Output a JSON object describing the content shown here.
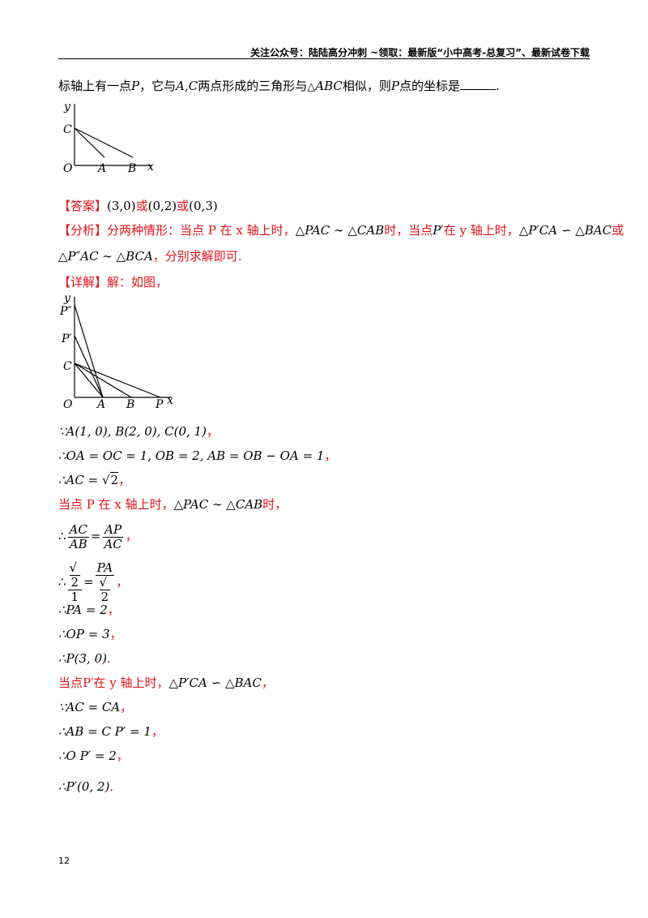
{
  "header": {
    "text": "关注公众号：陆陆高分冲刺 ~领取：最新版“小中高考-总复习”、最新试卷下载"
  },
  "question": {
    "prefix": "标轴上有一点",
    "p": "P",
    "mid1": "，它与",
    "ac": "A",
    "comma": ",",
    "c": "C",
    "mid2": "两点形成的三角形与",
    "tri": "△",
    "abc": "ABC",
    "mid3": "相似，则",
    "p2": "P",
    "mid4": "点的坐标是",
    "end": "."
  },
  "figure1": {
    "labels": {
      "y": "y",
      "c": "C",
      "o": "O",
      "a": "A",
      "b": "B",
      "x": "x"
    }
  },
  "answer": {
    "tag": "【答案】",
    "v1": "(3,0)",
    "or1": "或",
    "v2": "(0,2)",
    "or2": "或",
    "v3": "(0,3)"
  },
  "analysis": {
    "tag": "【分析】",
    "line1": "分两种情形：当点 P 在 x 轴上时，",
    "sim1": "△PAC ∼ △CAB",
    "t1": "时，当点",
    "pp": "P′",
    "t2": "在 y 轴上时，",
    "sim2": "△P′CA ∽ △BAC",
    "t3": "或",
    "sim3": "△P″AC ∼ △BCA",
    "t4": "，分别求解即可."
  },
  "detail": {
    "tag": "【详解】",
    "text": "解：如图，"
  },
  "figure2": {
    "labels": {
      "y": "y",
      "p2": "P″",
      "p1": "P′",
      "c": "C",
      "o": "O",
      "a": "A",
      "b": "B",
      "p": "P",
      "x": "x"
    }
  },
  "steps": {
    "s1": "∵A(1, 0), B(2, 0), C(0, 1)",
    "s1end": "，",
    "s2": "∴OA = OC = 1, OB = 2, AB = OB − OA = 1",
    "s2end": "，",
    "s3a": "∴AC = ",
    "s3root": "2",
    "s3end": "，",
    "s4": "当点 P 在 x 轴上时，",
    "s4sim": "△PAC ∼ △CAB",
    "s4end": "时，",
    "s5pre": "∴",
    "s5n1": "AC",
    "s5d1": "AB",
    "s5eq": "=",
    "s5n2": "AP",
    "s5d2": "AC",
    "s5end": "，",
    "s6pre": "∴",
    "s6n1": "2",
    "s6d1": "1",
    "s6eq": "=",
    "s6n2": "PA",
    "s6d2": "2",
    "s6end": "，",
    "s7": "∴PA = 2",
    "s7end": "，",
    "s8": "∴OP = 3",
    "s8end": "，",
    "s9": "∴P(3, 0)",
    "s9end": ".",
    "s10": "当点P′在 y 轴上时，",
    "s10sim": "△P′CA ∽ △BAC",
    "s10end": "，",
    "s11": "∵AC = CA",
    "s11end": "，",
    "s12": "∴AB = C P′ = 1",
    "s12end": "，",
    "s13": "∴O P′ = 2",
    "s13end": "，",
    "s14": "∴P′(0, 2)",
    "s14end": "."
  },
  "page_number": "12"
}
